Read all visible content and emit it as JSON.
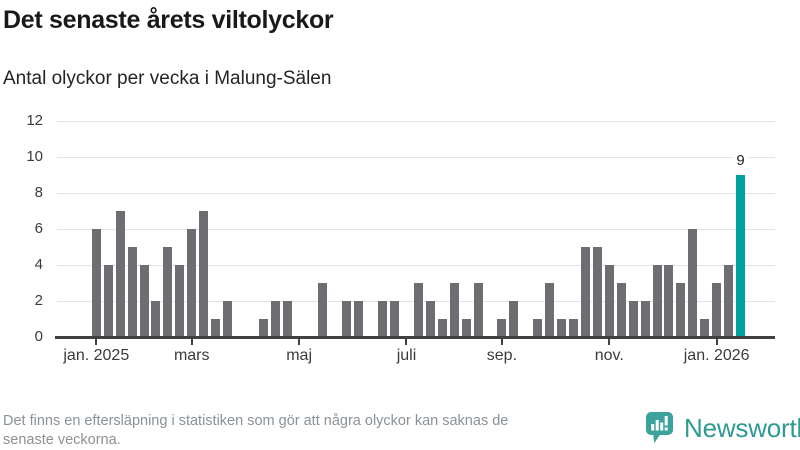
{
  "chart_data": {
    "type": "bar",
    "title": "Det senaste årets viltolyckor",
    "subtitle": "Antal olyckor per vecka i Malung-Sälen",
    "xlabel": "",
    "ylabel": "",
    "ylim": [
      0,
      12
    ],
    "grid": true,
    "y_ticks": [
      0,
      2,
      4,
      6,
      8,
      10,
      12
    ],
    "x_tick_labels": [
      {
        "index": 0,
        "label": "jan. 2025"
      },
      {
        "index": 8,
        "label": "mars"
      },
      {
        "index": 17,
        "label": "maj"
      },
      {
        "index": 26,
        "label": "juli"
      },
      {
        "index": 34,
        "label": "sep."
      },
      {
        "index": 43,
        "label": "nov."
      },
      {
        "index": 52,
        "label": "jan. 2026"
      }
    ],
    "values": [
      6,
      4,
      7,
      5,
      4,
      2,
      5,
      4,
      6,
      7,
      1,
      2,
      0,
      0,
      1,
      2,
      2,
      0,
      0,
      3,
      0,
      2,
      2,
      0,
      2,
      2,
      0,
      3,
      2,
      1,
      3,
      1,
      3,
      0,
      1,
      2,
      0,
      1,
      3,
      1,
      1,
      5,
      5,
      4,
      3,
      2,
      2,
      4,
      4,
      3,
      6,
      1,
      3,
      4,
      9
    ],
    "highlight": {
      "index": 54,
      "label": "9"
    },
    "colors": {
      "bar": "#6e6d72",
      "highlight": "#00a29b",
      "grid": "#e4e4e4",
      "axis": "#414141"
    }
  },
  "footer": {
    "note_line1": "Det finns en eftersläpning i statistiken som gör att några olyckor kan saknas de",
    "note_line2": "senaste veckorna.",
    "brand": "Newsworthy",
    "brand_color": "#2f9a93",
    "logo_icon": "speech-bubble-bar-chart-icon"
  }
}
